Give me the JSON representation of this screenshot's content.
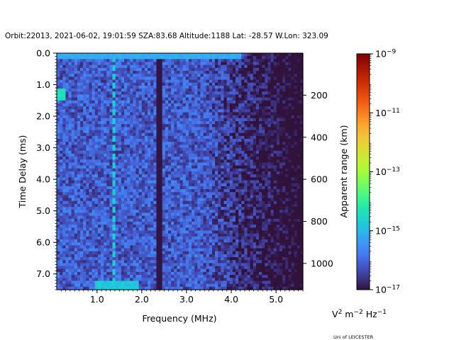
{
  "header": {
    "title": "Orbit:22013, 2021-06-02, 19:01:59 SZA:83.68 Altitude:1188 Lat: -28.57 W.Lon: 323.09"
  },
  "footer": {
    "credit": "Uni of LEICESTER"
  },
  "chart_data": {
    "type": "heatmap",
    "title": "Orbit:22013, 2021-06-02, 19:01:59 SZA:83.68 Altitude:1188 Lat: -28.57 W.Lon: 323.09",
    "xlabel": "Frequency (MHz)",
    "ylabel": "Time Delay (ms)",
    "y2label": "Apparent range (km)",
    "xlim": [
      0.1,
      5.6
    ],
    "ylim": [
      7.5,
      0.0
    ],
    "x_ticks": [
      1.0,
      2.0,
      3.0,
      4.0,
      5.0
    ],
    "x_tick_labels": [
      "1.0",
      "2.0",
      "3.0",
      "4.0",
      "5.0"
    ],
    "y_ticks": [
      0.0,
      1.0,
      2.0,
      3.0,
      4.0,
      5.0,
      6.0,
      7.0
    ],
    "y_tick_labels": [
      "0.0",
      "1.0",
      "2.0",
      "3.0",
      "4.0",
      "5.0",
      "6.0",
      "7.0"
    ],
    "y2_ticks_km": [
      200,
      400,
      600,
      800,
      1000
    ],
    "y2_tick_labels": [
      "200",
      "400",
      "600",
      "800",
      "1000"
    ],
    "colorbar": {
      "label_base": "V",
      "label_sup1": "2",
      "label_mid": " m",
      "label_sup2": "−2",
      "label_mid2": " Hz",
      "label_sup3": "−1",
      "scale": "log",
      "min": 1e-17,
      "max": 1e-09,
      "ticks": [
        {
          "exp": -9,
          "base": "10",
          "sup": "−9"
        },
        {
          "exp": -11,
          "base": "10",
          "sup": "−11"
        },
        {
          "exp": -13,
          "base": "10",
          "sup": "−13"
        },
        {
          "exp": -15,
          "base": "10",
          "sup": "−15"
        },
        {
          "exp": -17,
          "base": "10",
          "sup": "−17"
        }
      ],
      "colormap": [
        "#30123b",
        "#4145ab",
        "#4675ed",
        "#39a2fc",
        "#1bcfd4",
        "#24eca6",
        "#61fc6c",
        "#a4fc3b",
        "#d1e834",
        "#f3c63a",
        "#fe9b2d",
        "#f36315",
        "#d93806",
        "#b11901",
        "#7a0402"
      ]
    },
    "features": {
      "noise_level_log10_min": -17,
      "noise_level_log10_max": -15.3,
      "bright_line_top_delay_ms": 0.15,
      "dark_vertical_band_mhz": 2.37,
      "dashed_vertical_line_mhz": 1.33,
      "echo_trace_delay_ms": [
        7.15,
        7.35
      ],
      "echo_trace_mhz": [
        0.9,
        1.9
      ]
    }
  }
}
